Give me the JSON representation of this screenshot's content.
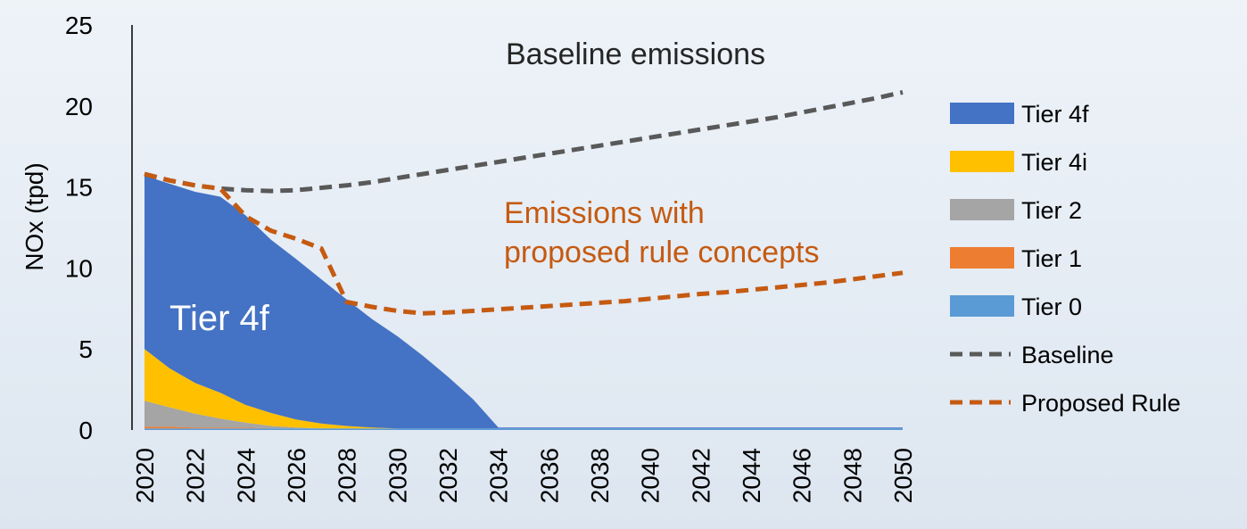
{
  "chart_data": {
    "type": "area",
    "ylabel": "NOx (tpd)",
    "ylim": [
      0,
      25
    ],
    "yticks": [
      0,
      5,
      10,
      15,
      20,
      25
    ],
    "x": [
      2020,
      2021,
      2022,
      2023,
      2024,
      2025,
      2026,
      2027,
      2028,
      2029,
      2030,
      2031,
      2032,
      2033,
      2034,
      2035,
      2036,
      2037,
      2038,
      2039,
      2040,
      2041,
      2042,
      2043,
      2044,
      2045,
      2046,
      2047,
      2048,
      2049,
      2050
    ],
    "xticks": [
      2020,
      2022,
      2024,
      2026,
      2028,
      2030,
      2032,
      2034,
      2036,
      2038,
      2040,
      2042,
      2044,
      2046,
      2048,
      2050
    ],
    "stack_series": [
      {
        "name": "Tier 0",
        "color": "#5b9bd5",
        "values": [
          0.1,
          0.1,
          0.1,
          0.1,
          0.1,
          0.1,
          0.1,
          0.1,
          0.1,
          0.1,
          0.1,
          0.1,
          0.1,
          0.1,
          0.1,
          0.1,
          0.1,
          0.1,
          0.1,
          0.1,
          0.1,
          0.1,
          0.1,
          0.1,
          0.1,
          0.1,
          0.1,
          0.1,
          0.1,
          0.1,
          0.1
        ]
      },
      {
        "name": "Tier 1",
        "color": "#ed7d31",
        "values": [
          0.1,
          0.1,
          0.05,
          0.05,
          0.05,
          0,
          0,
          0,
          0,
          0,
          0,
          0,
          0,
          0,
          0,
          0,
          0,
          0,
          0,
          0,
          0,
          0,
          0,
          0,
          0,
          0,
          0,
          0,
          0,
          0,
          0
        ]
      },
      {
        "name": "Tier 2",
        "color": "#a5a5a5",
        "values": [
          1.6,
          1.2,
          0.85,
          0.55,
          0.3,
          0.15,
          0.05,
          0,
          0,
          0,
          0,
          0,
          0,
          0,
          0,
          0,
          0,
          0,
          0,
          0,
          0,
          0,
          0,
          0,
          0,
          0,
          0,
          0,
          0,
          0,
          0
        ]
      },
      {
        "name": "Tier 4i",
        "color": "#ffc000",
        "values": [
          3.2,
          2.4,
          1.9,
          1.6,
          1.1,
          0.8,
          0.5,
          0.3,
          0.15,
          0.05,
          0,
          0,
          0,
          0,
          0,
          0,
          0,
          0,
          0,
          0,
          0,
          0,
          0,
          0,
          0,
          0,
          0,
          0,
          0,
          0,
          0
        ]
      },
      {
        "name": "Tier 4f",
        "color": "#4472c4",
        "values": [
          10.7,
          11.4,
          11.8,
          12.1,
          11.7,
          10.7,
          9.9,
          8.9,
          7.8,
          6.7,
          5.7,
          4.5,
          3.2,
          1.8,
          0.05,
          0.05,
          0.05,
          0.05,
          0.05,
          0.05,
          0.05,
          0.05,
          0.05,
          0.05,
          0.05,
          0.05,
          0.05,
          0.05,
          0.05,
          0.05,
          0.05
        ]
      }
    ],
    "line_series": [
      {
        "name": "Baseline",
        "color": "#595959",
        "values": [
          15.8,
          15.4,
          15.1,
          14.9,
          14.8,
          14.75,
          14.8,
          14.95,
          15.1,
          15.3,
          15.55,
          15.8,
          16.05,
          16.3,
          16.55,
          16.8,
          17.05,
          17.3,
          17.55,
          17.8,
          18.05,
          18.3,
          18.55,
          18.8,
          19.05,
          19.3,
          19.6,
          19.9,
          20.2,
          20.5,
          20.85
        ]
      },
      {
        "name": "Proposed Rule",
        "color": "#c55a11",
        "values": [
          15.8,
          15.4,
          15.1,
          14.9,
          13.2,
          12.3,
          11.8,
          11.2,
          7.9,
          7.6,
          7.35,
          7.2,
          7.25,
          7.35,
          7.45,
          7.55,
          7.65,
          7.75,
          7.85,
          7.95,
          8.1,
          8.25,
          8.4,
          8.5,
          8.65,
          8.8,
          8.95,
          9.1,
          9.3,
          9.5,
          9.7
        ]
      }
    ],
    "legend": {
      "placement": "right",
      "items": [
        {
          "label": "Tier 4f",
          "kind": "box",
          "color": "#4472c4"
        },
        {
          "label": "Tier 4i",
          "kind": "box",
          "color": "#ffc000"
        },
        {
          "label": "Tier 2",
          "kind": "box",
          "color": "#a5a5a5"
        },
        {
          "label": "Tier 1",
          "kind": "box",
          "color": "#ed7d31"
        },
        {
          "label": "Tier 0",
          "kind": "box",
          "color": "#5b9bd5"
        },
        {
          "label": "Baseline",
          "kind": "dash",
          "color": "#595959"
        },
        {
          "label": "Proposed Rule",
          "kind": "dash",
          "color": "#c55a11"
        }
      ]
    },
    "annotations": {
      "baseline": {
        "text": "Baseline emissions",
        "color": "#262626"
      },
      "proposed_line1": {
        "text": "Emissions with",
        "color": "#c55a11"
      },
      "proposed_line2": {
        "text": "proposed rule concepts",
        "color": "#c55a11"
      },
      "area_label": {
        "text": "Tier 4f",
        "color": "#ffffff"
      }
    },
    "grid": false
  }
}
